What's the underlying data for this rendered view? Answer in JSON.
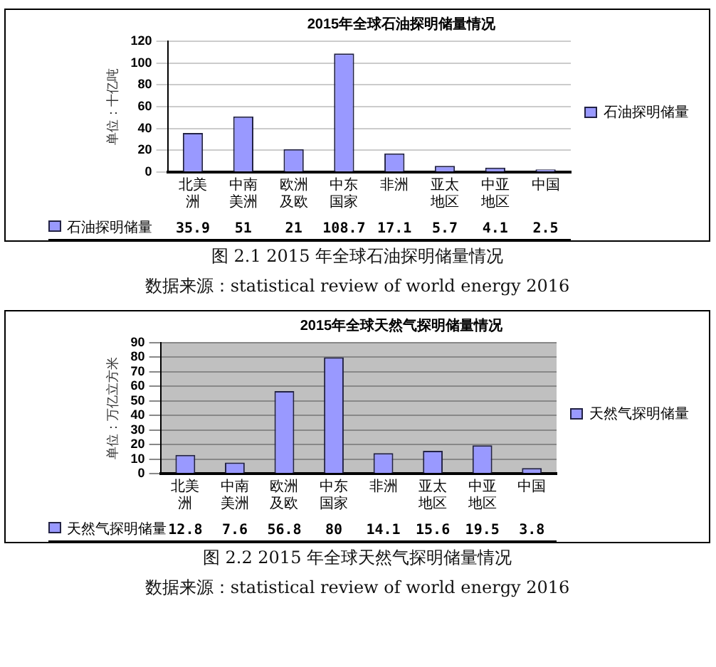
{
  "chart_data": [
    {
      "type": "bar",
      "title": "2015年全球石油探明储量情况",
      "ylabel": "单位：十亿吨",
      "categories": [
        "北美洲",
        "中南美洲",
        "欧洲及欧",
        "中东国家",
        "非洲",
        "亚太地区",
        "中亚地区",
        "中国"
      ],
      "series": [
        {
          "name": "石油探明储量",
          "color": "#9999ff",
          "values": [
            35.9,
            51,
            21,
            108.7,
            17.1,
            5.7,
            4.1,
            2.5
          ]
        }
      ],
      "ylim": [
        0,
        120
      ],
      "yticks": [
        0,
        20,
        40,
        60,
        80,
        100,
        120
      ],
      "grid": "y",
      "legend": "right",
      "data_labels": true,
      "annotations": [
        "图 2.1 2015 年全球石油探明储量情况",
        "数据来源：statistical review of world energy 2016"
      ]
    },
    {
      "type": "bar",
      "title": "2015年全球天然气探明储量情况",
      "ylabel": "单位：万亿立方米",
      "categories": [
        "北美洲",
        "中南美洲",
        "欧洲及欧",
        "中东国家",
        "非洲",
        "亚太地区",
        "中亚地区",
        "中国"
      ],
      "series": [
        {
          "name": "天然气探明储量",
          "color": "#9999ff",
          "values": [
            12.8,
            7.6,
            56.8,
            80,
            14.1,
            15.6,
            19.5,
            3.8
          ]
        }
      ],
      "ylim": [
        0,
        90
      ],
      "yticks": [
        0,
        10,
        20,
        30,
        40,
        50,
        60,
        70,
        80,
        90
      ],
      "grid": "y",
      "legend": "right",
      "data_labels": true,
      "annotations": [
        "图 2.2 2015 年全球天然气探明储量情况",
        "数据来源：statistical review of world energy 2016"
      ]
    }
  ]
}
